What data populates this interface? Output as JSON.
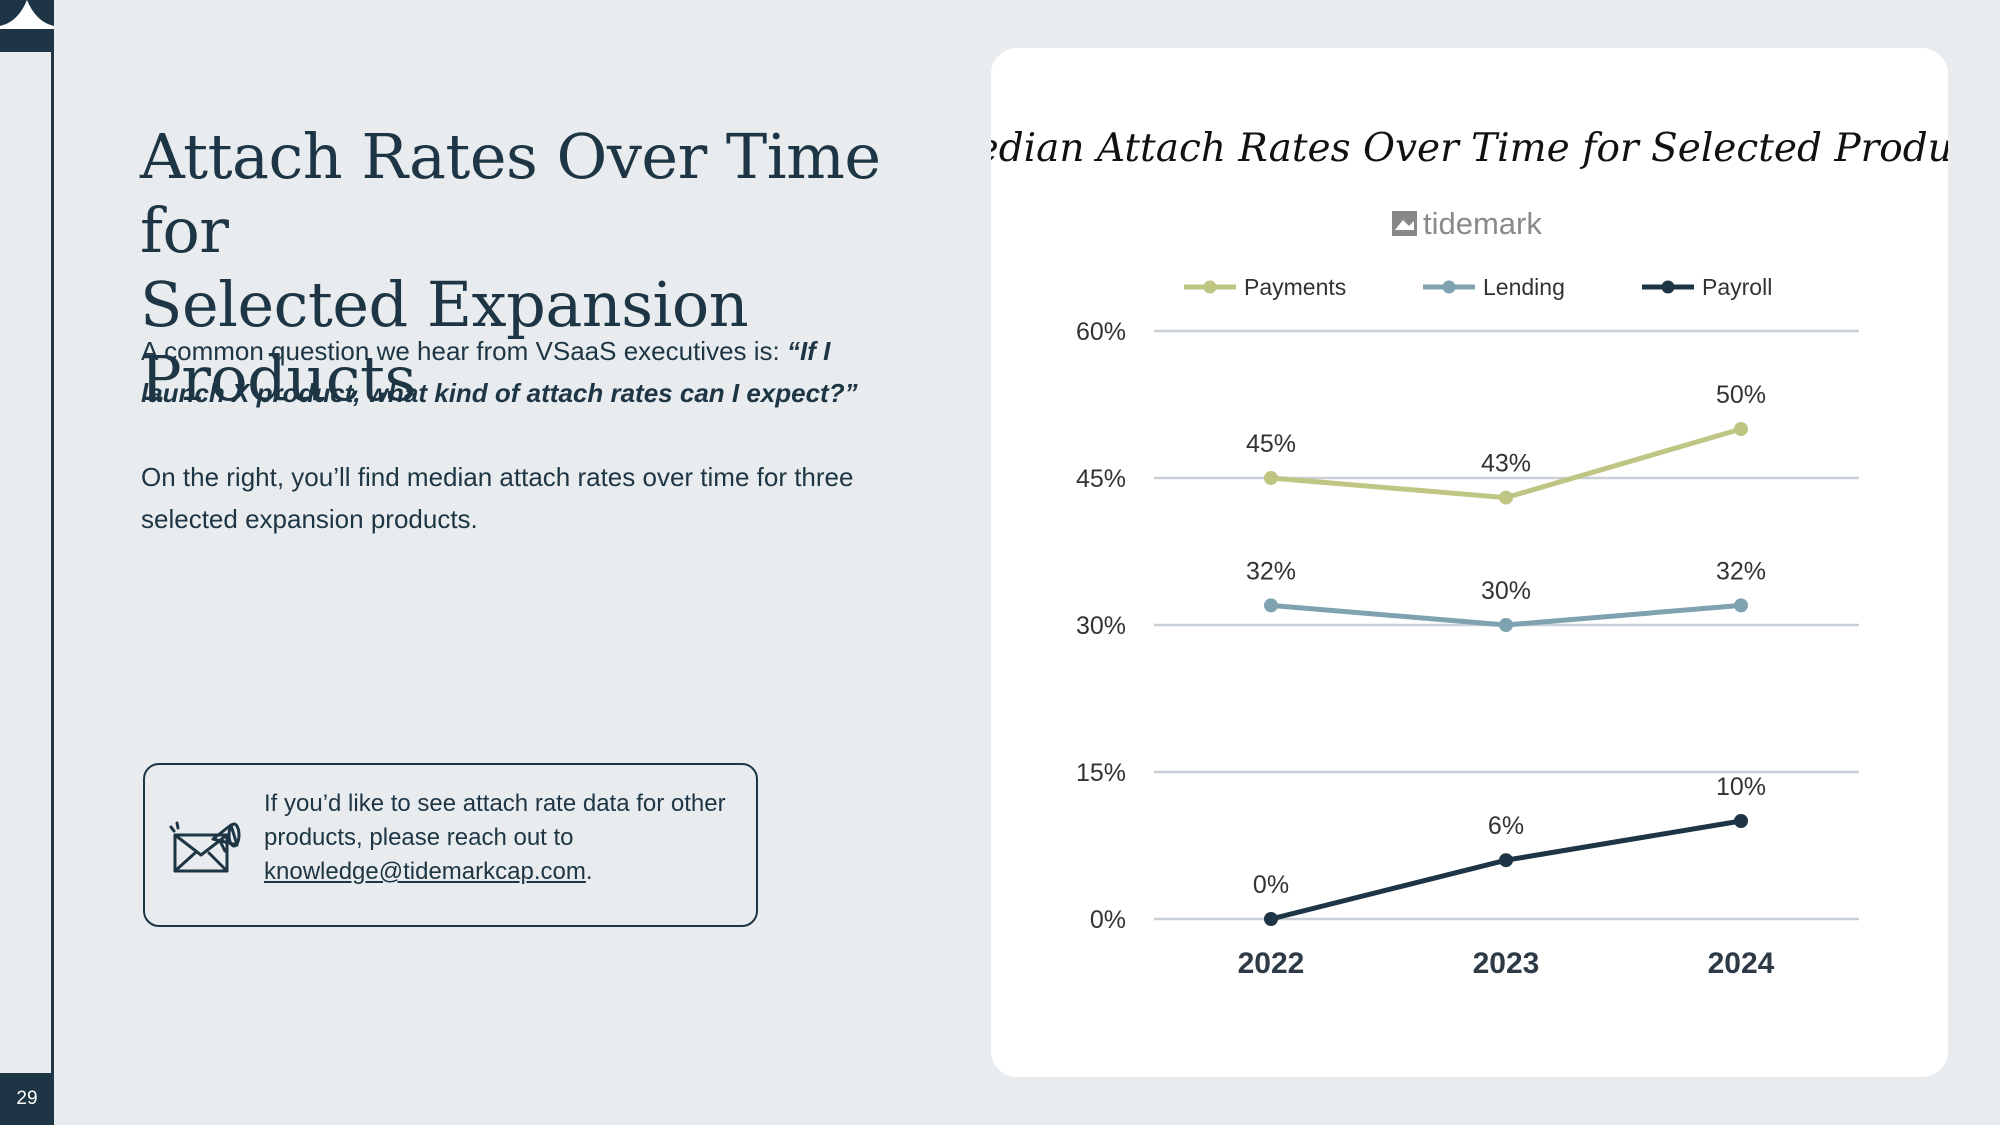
{
  "slide": {
    "page_number": "29",
    "title_line1": "Attach Rates Over Time for",
    "title_line2": "Selected Expansion Products",
    "para1_text": "A common question we hear from VSaaS executives is: ",
    "para1_quote": "“If I launch X product, what kind of attach rates can I expect?”",
    "para2": "On the right, you’ll find median attach rates over time for three selected expansion products.",
    "callout_text": "If you’d like to see attach rate data for other products, please reach out to ",
    "callout_email": "knowledge@tidemarkcap.com",
    "callout_period": ".",
    "callout_icon": "envelope-megaphone-icon"
  },
  "chart_data": {
    "type": "line",
    "title": "Median Attach Rates Over Time for Selected Products",
    "brand": "tidemark",
    "categories": [
      "2022",
      "2023",
      "2024"
    ],
    "series": [
      {
        "name": "Payments",
        "values": [
          45,
          43,
          50
        ],
        "labels": [
          "45%",
          "43%",
          "50%"
        ],
        "color": "#bfc583"
      },
      {
        "name": "Lending",
        "values": [
          32,
          30,
          32
        ],
        "labels": [
          "32%",
          "30%",
          "32%"
        ],
        "color": "#7fa2b0"
      },
      {
        "name": "Payroll",
        "values": [
          0,
          6,
          10
        ],
        "labels": [
          "0%",
          "6%",
          "10%"
        ],
        "color": "#1d3544"
      }
    ],
    "yticks": [
      0,
      15,
      30,
      45,
      60
    ],
    "ytick_labels": [
      "0%",
      "15%",
      "30%",
      "45%",
      "60%"
    ],
    "ylim": [
      0,
      60
    ],
    "grid": true,
    "legend_position": "top"
  }
}
